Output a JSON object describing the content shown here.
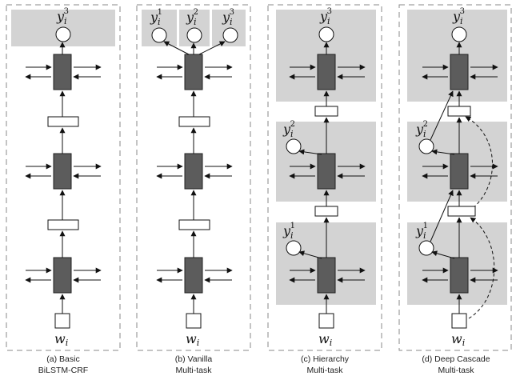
{
  "panels": [
    {
      "id": "basic",
      "caption": [
        "(a) Basic",
        "BiLSTM-CRF"
      ],
      "input": {
        "main": "w",
        "sub": "i"
      },
      "outputs": [
        {
          "main": "y",
          "sub": "i",
          "sup": "3"
        }
      ]
    },
    {
      "id": "vanilla",
      "caption": [
        "(b) Vanilla",
        "Multi-task"
      ],
      "input": {
        "main": "w",
        "sub": "i"
      },
      "outputs": [
        {
          "main": "y",
          "sub": "i",
          "sup": "1"
        },
        {
          "main": "y",
          "sub": "i",
          "sup": "2"
        },
        {
          "main": "y",
          "sub": "i",
          "sup": "3"
        }
      ]
    },
    {
      "id": "hierarchy",
      "caption": [
        "(c) Hierarchy",
        "Multi-task"
      ],
      "input": {
        "main": "w",
        "sub": "i"
      },
      "outputs": [
        {
          "main": "y",
          "sub": "i",
          "sup": "3"
        },
        {
          "main": "y",
          "sub": "i",
          "sup": "2"
        },
        {
          "main": "y",
          "sub": "i",
          "sup": "1"
        }
      ]
    },
    {
      "id": "cascade",
      "caption": [
        "(d) Deep Cascade",
        "Multi-task"
      ],
      "input": {
        "main": "w",
        "sub": "i"
      },
      "outputs": [
        {
          "main": "y",
          "sub": "i",
          "sup": "3"
        },
        {
          "main": "y",
          "sub": "i",
          "sup": "2"
        },
        {
          "main": "y",
          "sub": "i",
          "sup": "1"
        }
      ]
    }
  ],
  "colors": {
    "shade": "#d3d3d3",
    "lstm": "#5c5c5c",
    "frame": "#8a8a8a"
  }
}
